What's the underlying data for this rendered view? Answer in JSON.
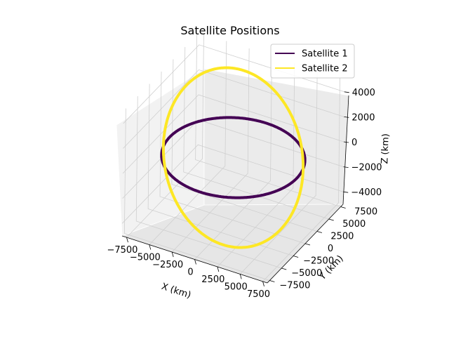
{
  "chart_data": {
    "type": "line",
    "projection": "3d",
    "title": "Satellite Positions",
    "xlabel": "X (km)",
    "ylabel": "Y (km)",
    "zlabel": "Z (km)",
    "xlim": [
      -8000,
      8000
    ],
    "ylim": [
      -8000,
      8000
    ],
    "zlim": [
      -5000,
      5000
    ],
    "x_ticks": [
      "−7500",
      "−5000",
      "−2500",
      "0",
      "2500",
      "5000",
      "7500"
    ],
    "y_ticks": [
      "−7500",
      "−5000",
      "−2500",
      "0",
      "2500",
      "5000",
      "7500"
    ],
    "z_ticks": [
      "−4000",
      "−2000",
      "0",
      "2000",
      "4000"
    ],
    "grid": true,
    "legend_position": "top-right",
    "series": [
      {
        "name": "Satellite 1",
        "color": "#440154",
        "orbit": {
          "radius_km": 7000,
          "inclination_deg": 0,
          "node_deg": 0
        }
      },
      {
        "name": "Satellite 2",
        "color": "#fde725",
        "orbit": {
          "radius_km": 7000,
          "inclination_deg": 45,
          "node_deg": 45
        }
      }
    ]
  }
}
